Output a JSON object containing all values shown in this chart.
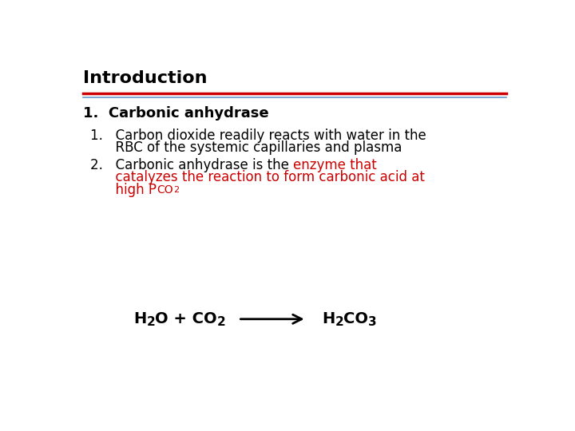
{
  "background_color": "#ffffff",
  "title": "Introduction",
  "title_fontsize": 16,
  "title_color": "#000000",
  "line1_color": "#cc0000",
  "line2_color": "#6699cc",
  "heading1": "1.  Carbonic anhydrase",
  "heading1_fontsize": 13,
  "heading1_color": "#000000",
  "bullet1_line1": "1.   Carbon dioxide readily reacts with water in the",
  "bullet1_line2": "      RBC of the systemic capillaries and plasma",
  "bullet2_black": "2.   Carbonic anhydrase is the ",
  "bullet2_red_line1": "enzyme that",
  "bullet2_red_line2": "      catalyzes the reaction to form carbonic acid at",
  "bullet2_red_line3_pre": "      high P",
  "bullet2_red_sub": "CO",
  "bullet2_red_subsub": "2",
  "bullet_fontsize": 12,
  "bullet_color": "#000000",
  "red_color": "#cc0000",
  "eq_fontsize": 14,
  "eq_bold": true,
  "arrow_color": "#000000",
  "fontfamily": "DejaVu Sans"
}
